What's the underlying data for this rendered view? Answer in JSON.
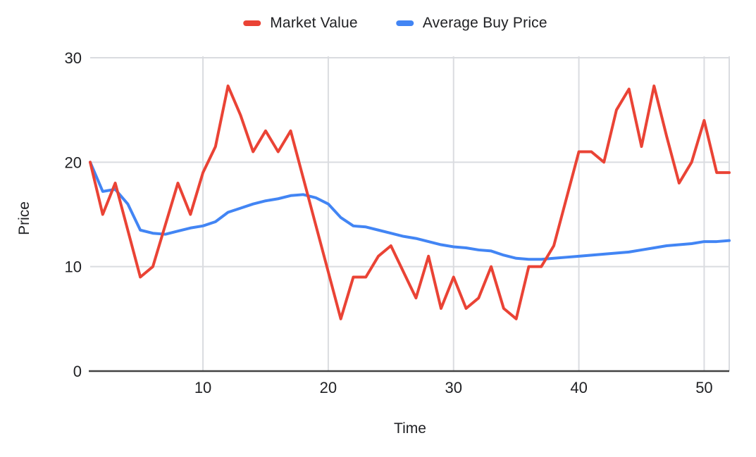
{
  "chart_data": {
    "type": "line",
    "title": "",
    "xlabel": "Time",
    "ylabel": "Price",
    "xlim": [
      1,
      52
    ],
    "ylim": [
      0,
      30
    ],
    "x_ticks": [
      10,
      20,
      30,
      40,
      50
    ],
    "y_ticks": [
      0,
      10,
      20,
      30
    ],
    "grid": true,
    "legend_position": "top",
    "background": "#ffffff",
    "gridline_color": "#dadce0",
    "axis_line_color": "#424242",
    "text_color": "#202124",
    "x": [
      1,
      2,
      3,
      4,
      5,
      6,
      7,
      8,
      9,
      10,
      11,
      12,
      13,
      14,
      15,
      16,
      17,
      18,
      19,
      20,
      21,
      22,
      23,
      24,
      25,
      26,
      27,
      28,
      29,
      30,
      31,
      32,
      33,
      34,
      35,
      36,
      37,
      38,
      39,
      40,
      41,
      42,
      43,
      44,
      45,
      46,
      47,
      48,
      49,
      50,
      51,
      52
    ],
    "series": [
      {
        "name": "Market Value",
        "color": "#EA4335",
        "values": [
          20,
          15,
          18,
          13.5,
          9,
          10,
          14,
          18,
          15,
          19,
          21.5,
          27.3,
          24.5,
          21,
          23,
          21,
          23,
          18.5,
          14,
          9.5,
          5,
          9,
          9,
          11,
          12,
          9.5,
          7,
          11,
          6,
          9,
          6,
          7,
          10,
          6,
          5,
          10,
          10,
          12,
          16.5,
          21,
          21,
          20,
          25,
          27,
          21.5,
          27.3,
          22.5,
          18,
          20,
          24,
          19,
          19
        ]
      },
      {
        "name": "Average Buy Price",
        "color": "#4285F4",
        "values": [
          20,
          17.2,
          17.4,
          16,
          13.5,
          13.2,
          13.1,
          13.4,
          13.7,
          13.9,
          14.3,
          15.2,
          15.6,
          16,
          16.3,
          16.5,
          16.8,
          16.9,
          16.6,
          16,
          14.7,
          13.9,
          13.8,
          13.5,
          13.2,
          12.9,
          12.7,
          12.4,
          12.1,
          11.9,
          11.8,
          11.6,
          11.5,
          11.1,
          10.8,
          10.7,
          10.7,
          10.8,
          10.9,
          11,
          11.1,
          11.2,
          11.3,
          11.4,
          11.6,
          11.8,
          12,
          12.1,
          12.2,
          12.4,
          12.4,
          12.5
        ]
      }
    ]
  }
}
